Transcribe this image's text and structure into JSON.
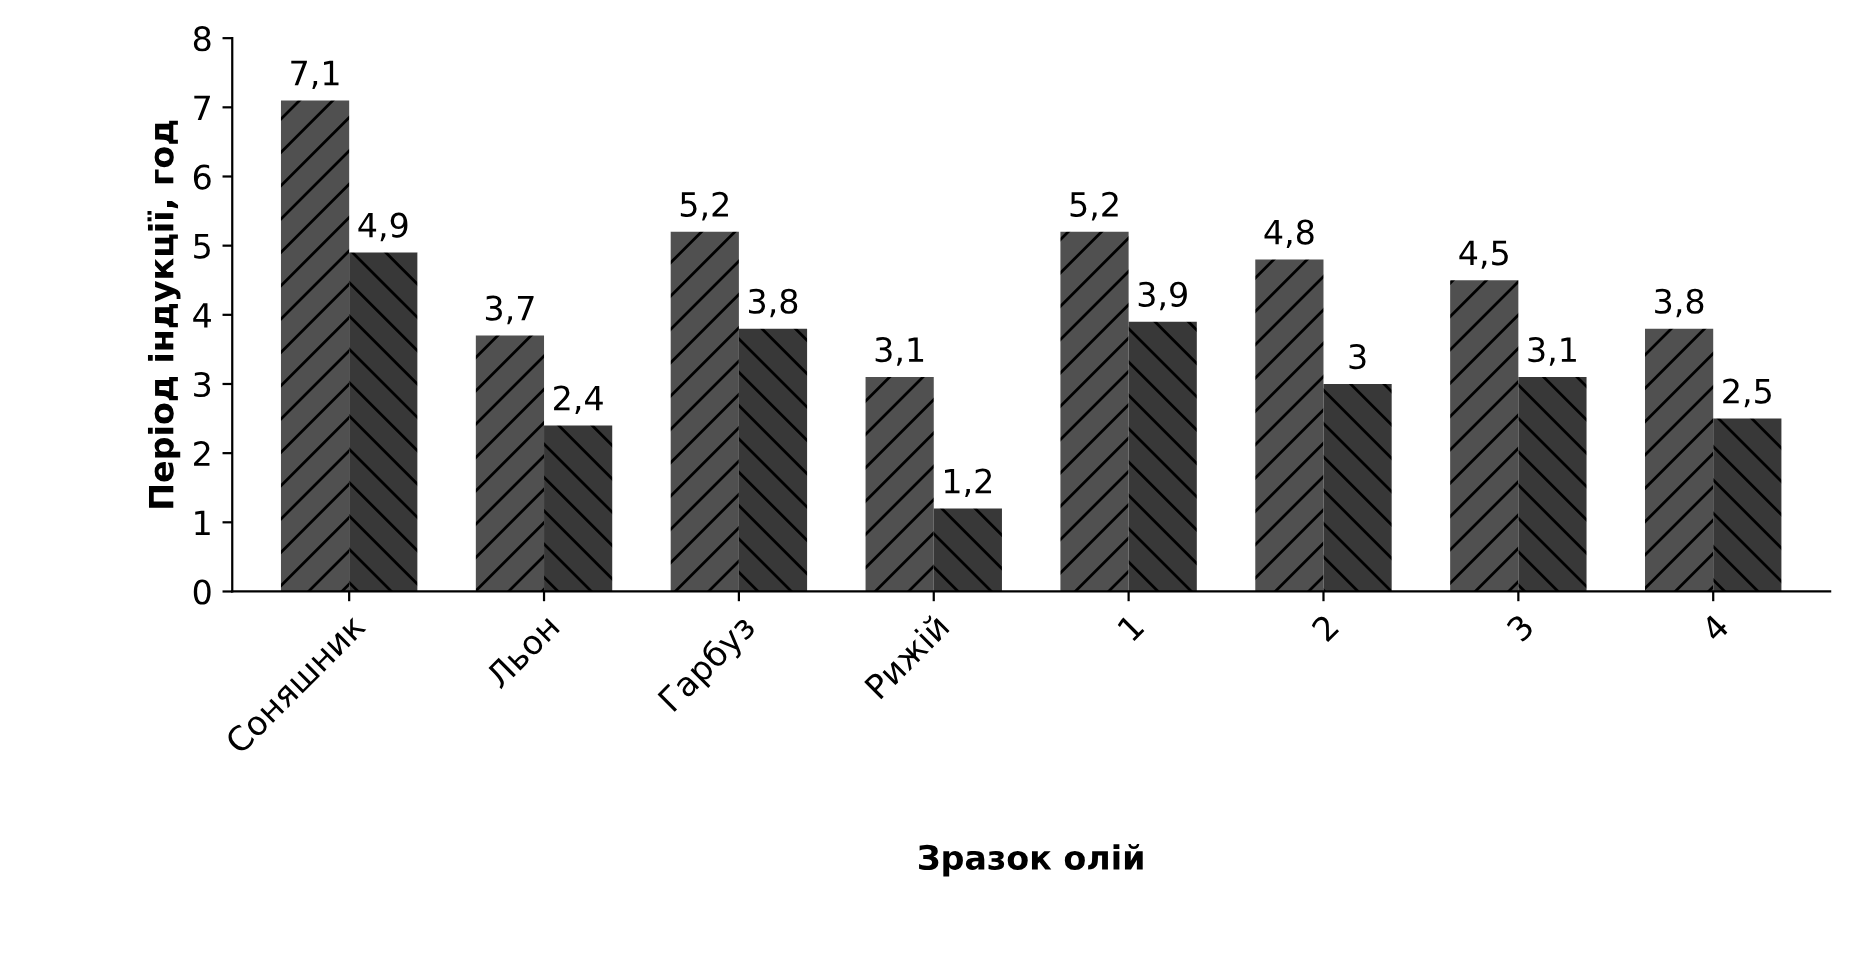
{
  "chart_data": {
    "type": "bar",
    "xlabel": "Зразок олій",
    "ylabel": "Період індукції, год",
    "categories": [
      "Соняшник",
      "Льон",
      "Гарбуз",
      "Рижій",
      "1",
      "2",
      "3",
      "4"
    ],
    "series": [
      {
        "color": "#505050",
        "values": [
          7.1,
          3.7,
          5.2,
          3.1,
          5.2,
          4.8,
          4.5,
          3.8
        ],
        "value_labels": [
          "7,1",
          "3,7",
          "5,2",
          "3,1",
          "5,2",
          "4,8",
          "4,5",
          "3,8"
        ]
      },
      {
        "color": "#383838",
        "values": [
          4.9,
          2.4,
          3.8,
          1.2,
          3.9,
          3,
          3.1,
          2.5
        ],
        "value_labels": [
          "4,9",
          "2,4",
          "3,8",
          "1,2",
          "3,9",
          "3",
          "3,1",
          "2,5"
        ]
      }
    ],
    "ylim": [
      0,
      8
    ],
    "yticks": [
      0,
      1,
      2,
      3,
      4,
      5,
      6,
      7,
      8
    ],
    "grid": false,
    "legend": false
  }
}
